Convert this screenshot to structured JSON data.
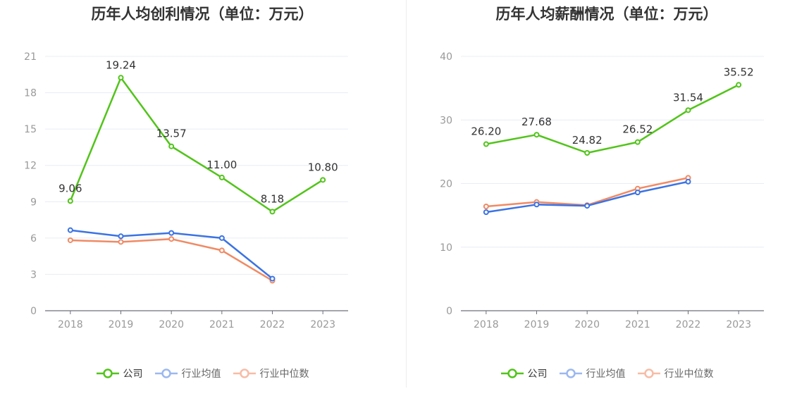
{
  "charts": {
    "profit": {
      "title": "历年人均创利情况（单位：万元）"
    },
    "salary": {
      "title": "历年人均薪酬情况（单位：万元）"
    }
  },
  "legend": [
    "公司",
    "行业均值",
    "行业中位数"
  ],
  "colors": {
    "company": "#52c41a",
    "avg": "#3b73e3",
    "median": "#f08a64",
    "grid": "#e8ecf3",
    "axis": "#999999"
  },
  "chart_data": [
    {
      "type": "line",
      "title": "历年人均创利情况（单位：万元）",
      "categories": [
        "2018",
        "2019",
        "2020",
        "2021",
        "2022",
        "2023"
      ],
      "ylim": [
        0,
        21
      ],
      "yticks": [
        0,
        3,
        6,
        9,
        12,
        15,
        18,
        21
      ],
      "grid": true,
      "legend_position": "bottom",
      "series": [
        {
          "name": "公司",
          "color": "#52c41a",
          "labels": true,
          "values": [
            9.06,
            19.24,
            13.57,
            11.0,
            8.18,
            10.8
          ]
        },
        {
          "name": "行业均值",
          "color": "#3b73e3",
          "labels": false,
          "values": [
            6.65,
            6.15,
            6.42,
            6.0,
            2.65,
            null
          ]
        },
        {
          "name": "行业中位数",
          "color": "#f08a64",
          "labels": false,
          "values": [
            5.82,
            5.68,
            5.92,
            4.98,
            2.48,
            null
          ]
        }
      ]
    },
    {
      "type": "line",
      "title": "历年人均薪酬情况（单位：万元）",
      "categories": [
        "2018",
        "2019",
        "2020",
        "2021",
        "2022",
        "2023"
      ],
      "ylim": [
        0,
        40
      ],
      "yticks": [
        0,
        10,
        20,
        30,
        40
      ],
      "grid": true,
      "legend_position": "bottom",
      "series": [
        {
          "name": "公司",
          "color": "#52c41a",
          "labels": true,
          "values": [
            26.2,
            27.68,
            24.82,
            26.52,
            31.54,
            35.52
          ]
        },
        {
          "name": "行业均值",
          "color": "#3b73e3",
          "labels": false,
          "values": [
            15.5,
            16.7,
            16.5,
            18.6,
            20.3,
            null
          ]
        },
        {
          "name": "行业中位数",
          "color": "#f08a64",
          "labels": false,
          "values": [
            16.4,
            17.1,
            16.6,
            19.2,
            20.9,
            null
          ]
        }
      ]
    }
  ]
}
